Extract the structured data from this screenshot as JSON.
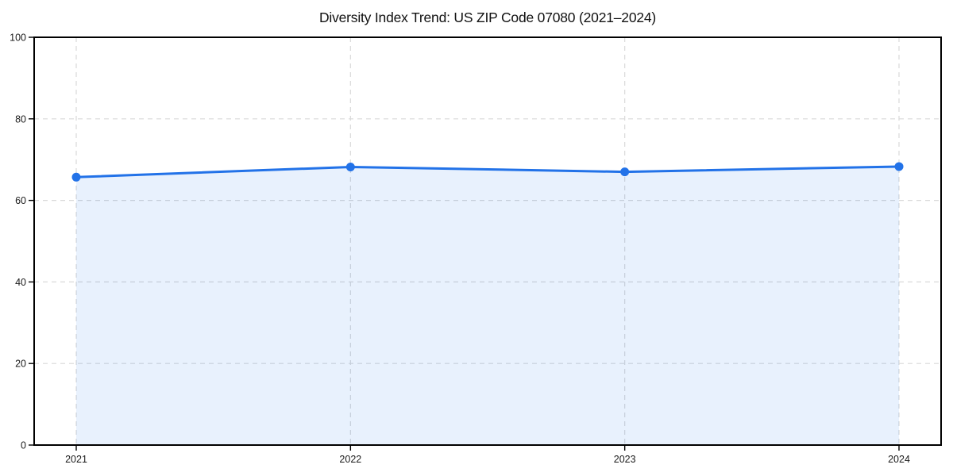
{
  "page": {
    "background": "#ffffff"
  },
  "chart_data": {
    "type": "line",
    "title": "Diversity Index Trend: US ZIP Code 07080 (2021–2024)",
    "x": [
      2021,
      2022,
      2023,
      2024
    ],
    "xticks": [
      "2021",
      "2022",
      "2023",
      "2024"
    ],
    "series": [
      {
        "name": "Diversity Index",
        "values": [
          65.7,
          68.2,
          67.0,
          68.3
        ]
      }
    ],
    "xlabel": "",
    "ylabel": "",
    "ylim": [
      0,
      100
    ],
    "yticks": [
      0,
      20,
      40,
      60,
      80,
      100
    ],
    "grid": true,
    "grid_style": "dashed",
    "legend": "none",
    "area_fill": true,
    "marker": "circle",
    "colors": {
      "line": "#2272e8",
      "marker": "#2272e8",
      "area_fill": "rgba(34, 114, 232, 0.10)",
      "grid": "#d9d9d9",
      "spine": "#000000",
      "tick": "#000000",
      "tick_label": "#1a1a1a",
      "title": "#111111"
    }
  }
}
